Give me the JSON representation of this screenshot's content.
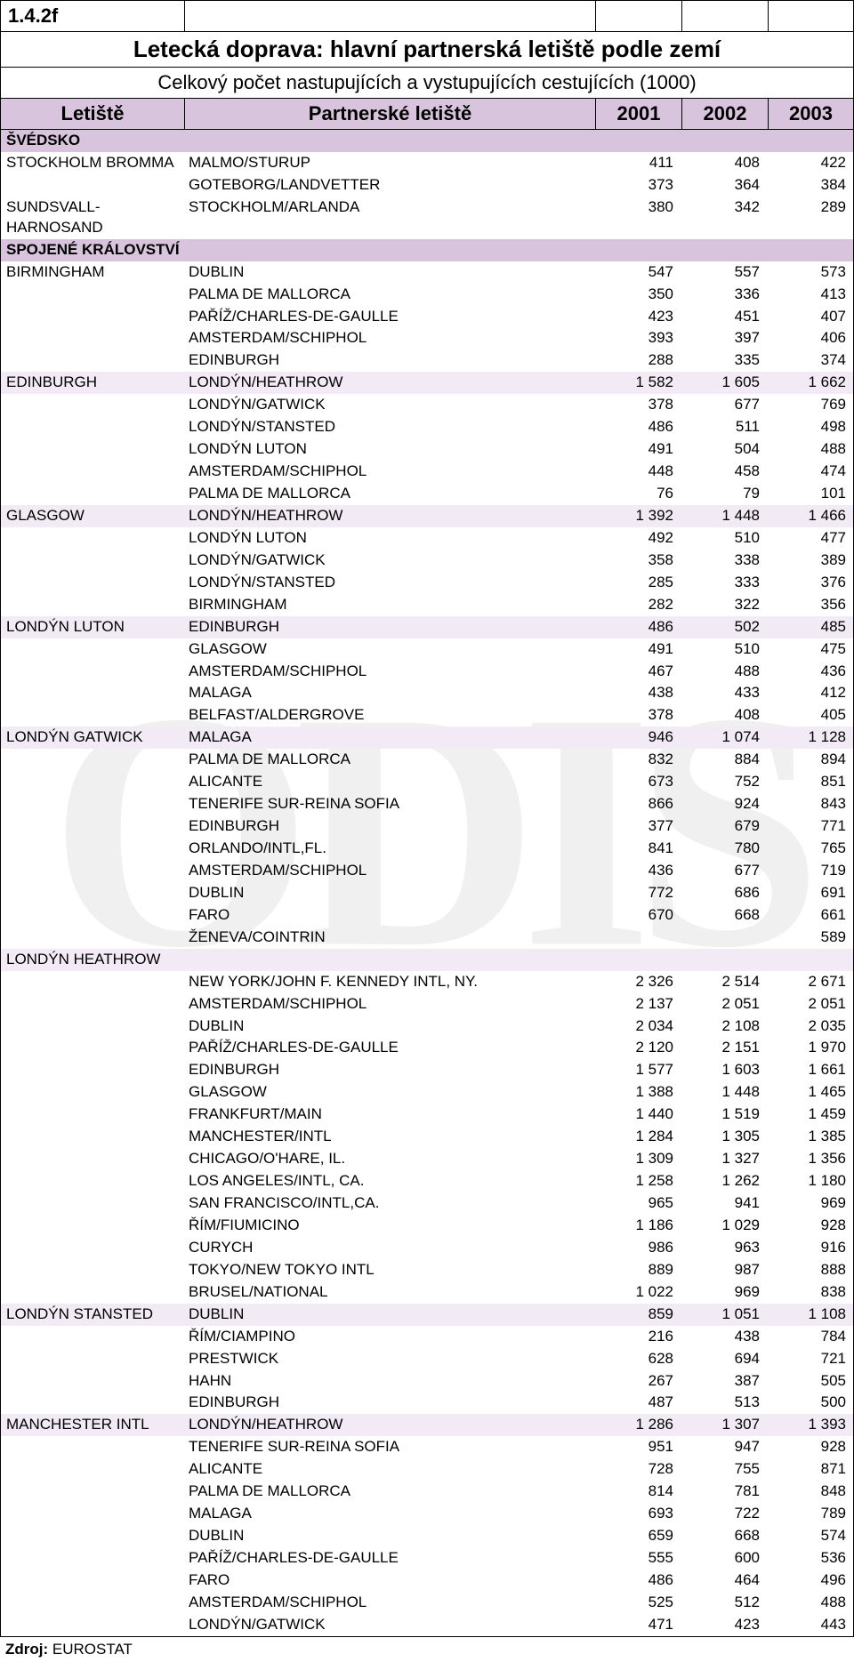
{
  "code": "1.4.2f",
  "title": "Letecká doprava: hlavní partnerská letiště podle zemí",
  "subtitle": "Celkový počet nastupujících a vystupujících cestujících (1000)",
  "headers": {
    "col1": "Letiště",
    "col2": "Partnerské letiště",
    "col3": "2001",
    "col4": "2002",
    "col5": "2003"
  },
  "watermark": "ODIS",
  "source_label": "Zdroj:",
  "source_value": "EUROSTAT",
  "colors": {
    "header_bg": "#d8c4dc",
    "shade_bg": "#f2eaf4",
    "border": "#000000",
    "text": "#000000"
  },
  "rows": [
    {
      "type": "country",
      "airport": "ŠVÉDSKO",
      "partner": "",
      "y1": "",
      "y2": "",
      "y3": ""
    },
    {
      "type": "data",
      "airport": "STOCKHOLM BROMMA",
      "partner": "MALMO/STURUP",
      "y1": "411",
      "y2": "408",
      "y3": "422"
    },
    {
      "type": "data",
      "airport": "",
      "partner": "GOTEBORG/LANDVETTER",
      "y1": "373",
      "y2": "364",
      "y3": "384"
    },
    {
      "type": "data",
      "airport": "SUNDSVALL-HARNOSAND",
      "partner": "STOCKHOLM/ARLANDA",
      "y1": "380",
      "y2": "342",
      "y3": "289"
    },
    {
      "type": "country",
      "airport": "SPOJENÉ KRÁLOVSTVÍ",
      "partner": "",
      "y1": "",
      "y2": "",
      "y3": ""
    },
    {
      "type": "data",
      "airport": "BIRMINGHAM",
      "partner": "DUBLIN",
      "y1": "547",
      "y2": "557",
      "y3": "573"
    },
    {
      "type": "data",
      "airport": "",
      "partner": "PALMA DE MALLORCA",
      "y1": "350",
      "y2": "336",
      "y3": "413"
    },
    {
      "type": "data",
      "airport": "",
      "partner": "PAŘÍŽ/CHARLES-DE-GAULLE",
      "y1": "423",
      "y2": "451",
      "y3": "407"
    },
    {
      "type": "data",
      "airport": "",
      "partner": "AMSTERDAM/SCHIPHOL",
      "y1": "393",
      "y2": "397",
      "y3": "406"
    },
    {
      "type": "data",
      "airport": "",
      "partner": "EDINBURGH",
      "y1": "288",
      "y2": "335",
      "y3": "374"
    },
    {
      "type": "shade",
      "airport": "EDINBURGH",
      "partner": "LONDÝN/HEATHROW",
      "y1": "1 582",
      "y2": "1 605",
      "y3": "1 662"
    },
    {
      "type": "data",
      "airport": "",
      "partner": "LONDÝN/GATWICK",
      "y1": "378",
      "y2": "677",
      "y3": "769"
    },
    {
      "type": "data",
      "airport": "",
      "partner": "LONDÝN/STANSTED",
      "y1": "486",
      "y2": "511",
      "y3": "498"
    },
    {
      "type": "data",
      "airport": "",
      "partner": "LONDÝN LUTON",
      "y1": "491",
      "y2": "504",
      "y3": "488"
    },
    {
      "type": "data",
      "airport": "",
      "partner": "AMSTERDAM/SCHIPHOL",
      "y1": "448",
      "y2": "458",
      "y3": "474"
    },
    {
      "type": "data",
      "airport": "",
      "partner": "PALMA DE MALLORCA",
      "y1": "76",
      "y2": "79",
      "y3": "101"
    },
    {
      "type": "shade",
      "airport": "GLASGOW",
      "partner": "LONDÝN/HEATHROW",
      "y1": "1 392",
      "y2": "1 448",
      "y3": "1 466"
    },
    {
      "type": "data",
      "airport": "",
      "partner": "LONDÝN LUTON",
      "y1": "492",
      "y2": "510",
      "y3": "477"
    },
    {
      "type": "data",
      "airport": "",
      "partner": "LONDÝN/GATWICK",
      "y1": "358",
      "y2": "338",
      "y3": "389"
    },
    {
      "type": "data",
      "airport": "",
      "partner": "LONDÝN/STANSTED",
      "y1": "285",
      "y2": "333",
      "y3": "376"
    },
    {
      "type": "data",
      "airport": "",
      "partner": "BIRMINGHAM",
      "y1": "282",
      "y2": "322",
      "y3": "356"
    },
    {
      "type": "shade",
      "airport": "LONDÝN LUTON",
      "partner": "EDINBURGH",
      "y1": "486",
      "y2": "502",
      "y3": "485"
    },
    {
      "type": "data",
      "airport": "",
      "partner": "GLASGOW",
      "y1": "491",
      "y2": "510",
      "y3": "475"
    },
    {
      "type": "data",
      "airport": "",
      "partner": "AMSTERDAM/SCHIPHOL",
      "y1": "467",
      "y2": "488",
      "y3": "436"
    },
    {
      "type": "data",
      "airport": "",
      "partner": "MALAGA",
      "y1": "438",
      "y2": "433",
      "y3": "412"
    },
    {
      "type": "data",
      "airport": "",
      "partner": "BELFAST/ALDERGROVE",
      "y1": "378",
      "y2": "408",
      "y3": "405"
    },
    {
      "type": "shade",
      "airport": "LONDÝN GATWICK",
      "partner": "MALAGA",
      "y1": "946",
      "y2": "1 074",
      "y3": "1 128"
    },
    {
      "type": "data",
      "airport": "",
      "partner": "PALMA DE MALLORCA",
      "y1": "832",
      "y2": "884",
      "y3": "894"
    },
    {
      "type": "data",
      "airport": "",
      "partner": "ALICANTE",
      "y1": "673",
      "y2": "752",
      "y3": "851"
    },
    {
      "type": "data",
      "airport": "",
      "partner": "TENERIFE SUR-REINA SOFIA",
      "y1": "866",
      "y2": "924",
      "y3": "843"
    },
    {
      "type": "data",
      "airport": "",
      "partner": "EDINBURGH",
      "y1": "377",
      "y2": "679",
      "y3": "771"
    },
    {
      "type": "data",
      "airport": "",
      "partner": "ORLANDO/INTL,FL.",
      "y1": "841",
      "y2": "780",
      "y3": "765"
    },
    {
      "type": "data",
      "airport": "",
      "partner": "AMSTERDAM/SCHIPHOL",
      "y1": "436",
      "y2": "677",
      "y3": "719"
    },
    {
      "type": "data",
      "airport": "",
      "partner": "DUBLIN",
      "y1": "772",
      "y2": "686",
      "y3": "691"
    },
    {
      "type": "data",
      "airport": "",
      "partner": "FARO",
      "y1": "670",
      "y2": "668",
      "y3": "661"
    },
    {
      "type": "data",
      "airport": "",
      "partner": "ŽENEVA/COINTRIN",
      "y1": "",
      "y2": "",
      "y3": "589"
    },
    {
      "type": "shade",
      "airport": "LONDÝN HEATHROW",
      "partner": "",
      "y1": "",
      "y2": "",
      "y3": ""
    },
    {
      "type": "data",
      "airport": "",
      "partner": "NEW YORK/JOHN F. KENNEDY INTL, NY.",
      "y1": "2 326",
      "y2": "2 514",
      "y3": "2 671"
    },
    {
      "type": "data",
      "airport": "",
      "partner": "AMSTERDAM/SCHIPHOL",
      "y1": "2 137",
      "y2": "2 051",
      "y3": "2 051"
    },
    {
      "type": "data",
      "airport": "",
      "partner": "DUBLIN",
      "y1": "2 034",
      "y2": "2 108",
      "y3": "2 035"
    },
    {
      "type": "data",
      "airport": "",
      "partner": "PAŘÍŽ/CHARLES-DE-GAULLE",
      "y1": "2 120",
      "y2": "2 151",
      "y3": "1 970"
    },
    {
      "type": "data",
      "airport": "",
      "partner": "EDINBURGH",
      "y1": "1 577",
      "y2": "1 603",
      "y3": "1 661"
    },
    {
      "type": "data",
      "airport": "",
      "partner": "GLASGOW",
      "y1": "1 388",
      "y2": "1 448",
      "y3": "1 465"
    },
    {
      "type": "data",
      "airport": "",
      "partner": "FRANKFURT/MAIN",
      "y1": "1 440",
      "y2": "1 519",
      "y3": "1 459"
    },
    {
      "type": "data",
      "airport": "",
      "partner": "MANCHESTER/INTL",
      "y1": "1 284",
      "y2": "1 305",
      "y3": "1 385"
    },
    {
      "type": "data",
      "airport": "",
      "partner": "CHICAGO/O'HARE, IL.",
      "y1": "1 309",
      "y2": "1 327",
      "y3": "1 356"
    },
    {
      "type": "data",
      "airport": "",
      "partner": "LOS ANGELES/INTL, CA.",
      "y1": "1 258",
      "y2": "1 262",
      "y3": "1 180"
    },
    {
      "type": "data",
      "airport": "",
      "partner": "SAN FRANCISCO/INTL,CA.",
      "y1": "965",
      "y2": "941",
      "y3": "969"
    },
    {
      "type": "data",
      "airport": "",
      "partner": "ŘÍM/FIUMICINO",
      "y1": "1 186",
      "y2": "1 029",
      "y3": "928"
    },
    {
      "type": "data",
      "airport": "",
      "partner": "CURYCH",
      "y1": "986",
      "y2": "963",
      "y3": "916"
    },
    {
      "type": "data",
      "airport": "",
      "partner": "TOKYO/NEW TOKYO INTL",
      "y1": "889",
      "y2": "987",
      "y3": "888"
    },
    {
      "type": "data",
      "airport": "",
      "partner": "BRUSEL/NATIONAL",
      "y1": "1 022",
      "y2": "969",
      "y3": "838"
    },
    {
      "type": "shade",
      "airport": "LONDÝN STANSTED",
      "partner": "DUBLIN",
      "y1": "859",
      "y2": "1 051",
      "y3": "1 108"
    },
    {
      "type": "data",
      "airport": "",
      "partner": "ŘÍM/CIAMPINO",
      "y1": "216",
      "y2": "438",
      "y3": "784"
    },
    {
      "type": "data",
      "airport": "",
      "partner": "PRESTWICK",
      "y1": "628",
      "y2": "694",
      "y3": "721"
    },
    {
      "type": "data",
      "airport": "",
      "partner": "HAHN",
      "y1": "267",
      "y2": "387",
      "y3": "505"
    },
    {
      "type": "data",
      "airport": "",
      "partner": "EDINBURGH",
      "y1": "487",
      "y2": "513",
      "y3": "500"
    },
    {
      "type": "shade",
      "airport": "MANCHESTER INTL",
      "partner": "LONDÝN/HEATHROW",
      "y1": "1 286",
      "y2": "1 307",
      "y3": "1 393"
    },
    {
      "type": "data",
      "airport": "",
      "partner": "TENERIFE SUR-REINA SOFIA",
      "y1": "951",
      "y2": "947",
      "y3": "928"
    },
    {
      "type": "data",
      "airport": "",
      "partner": "ALICANTE",
      "y1": "728",
      "y2": "755",
      "y3": "871"
    },
    {
      "type": "data",
      "airport": "",
      "partner": "PALMA DE MALLORCA",
      "y1": "814",
      "y2": "781",
      "y3": "848"
    },
    {
      "type": "data",
      "airport": "",
      "partner": "MALAGA",
      "y1": "693",
      "y2": "722",
      "y3": "789"
    },
    {
      "type": "data",
      "airport": "",
      "partner": "DUBLIN",
      "y1": "659",
      "y2": "668",
      "y3": "574"
    },
    {
      "type": "data",
      "airport": "",
      "partner": "PAŘÍŽ/CHARLES-DE-GAULLE",
      "y1": "555",
      "y2": "600",
      "y3": "536"
    },
    {
      "type": "data",
      "airport": "",
      "partner": "FARO",
      "y1": "486",
      "y2": "464",
      "y3": "496"
    },
    {
      "type": "data",
      "airport": "",
      "partner": "AMSTERDAM/SCHIPHOL",
      "y1": "525",
      "y2": "512",
      "y3": "488"
    },
    {
      "type": "data",
      "airport": "",
      "partner": "LONDÝN/GATWICK",
      "y1": "471",
      "y2": "423",
      "y3": "443"
    }
  ]
}
